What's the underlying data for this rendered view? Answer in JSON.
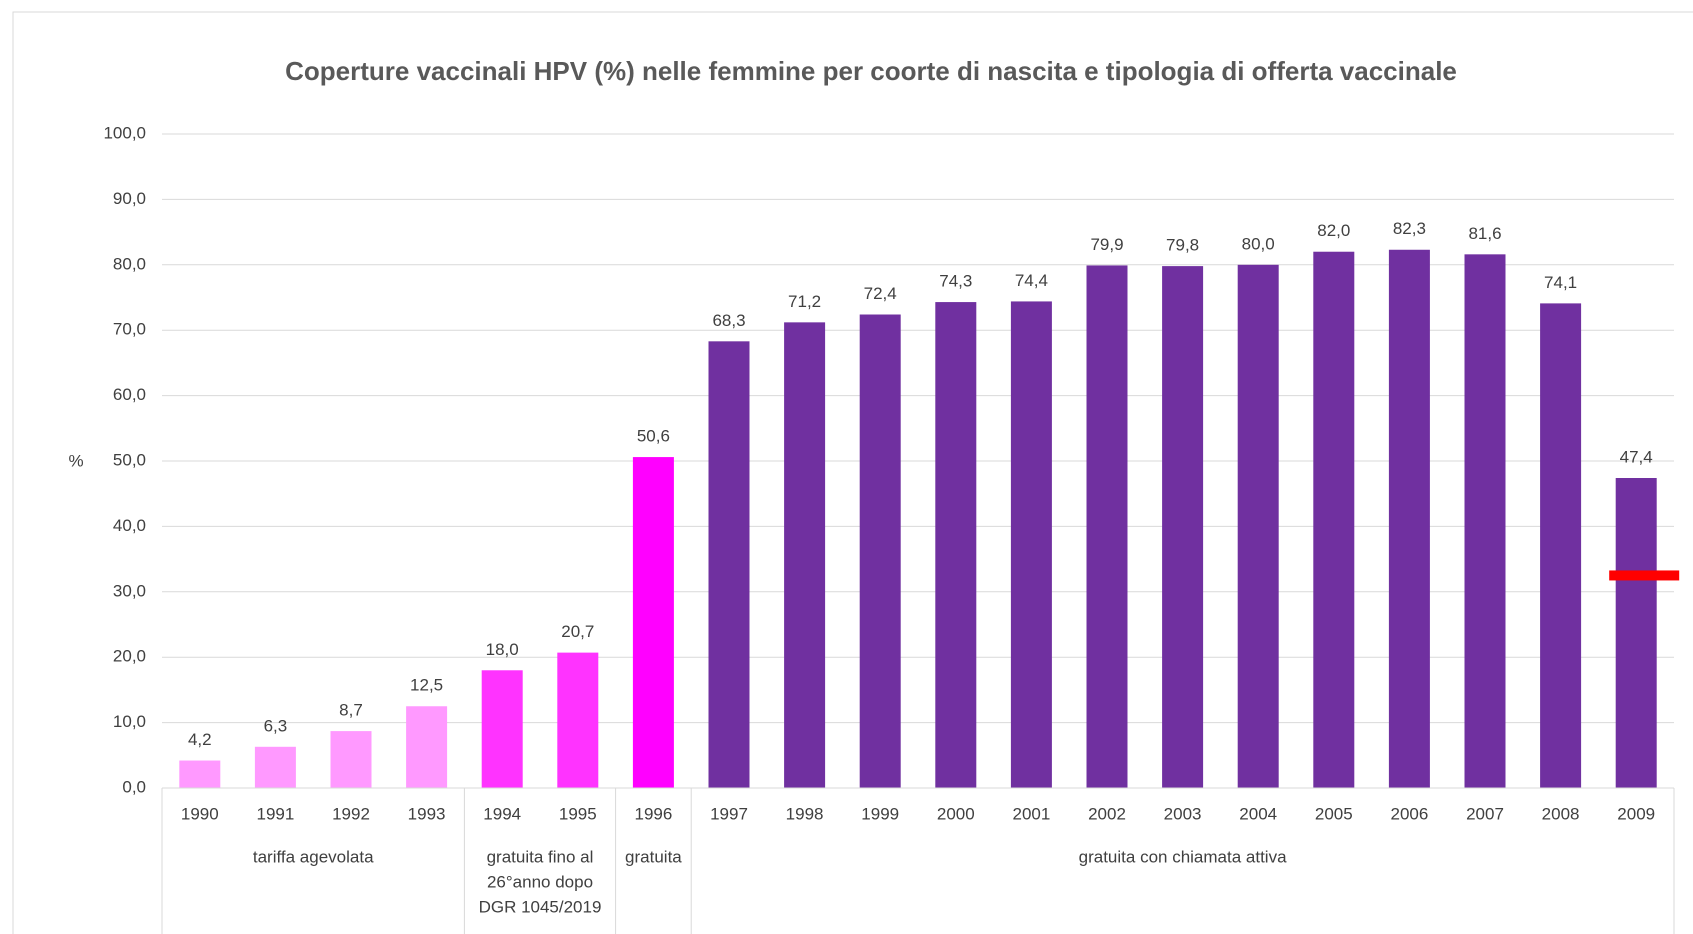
{
  "chart_data": {
    "type": "bar",
    "title": "Coperture vaccinali HPV (%) nelle femmine per coorte di nascita e tipologia di offerta vaccinale",
    "ylabel": "%",
    "categories": [
      "1990",
      "1991",
      "1992",
      "1993",
      "1994",
      "1995",
      "1996",
      "1997",
      "1998",
      "1999",
      "2000",
      "2001",
      "2002",
      "2003",
      "2004",
      "2005",
      "2006",
      "2007",
      "2008",
      "2009"
    ],
    "values": [
      4.2,
      6.3,
      8.7,
      12.5,
      18.0,
      20.7,
      50.6,
      68.3,
      71.2,
      72.4,
      74.3,
      74.4,
      79.9,
      79.8,
      80.0,
      82.0,
      82.3,
      81.6,
      74.1,
      47.4
    ],
    "value_labels": [
      "4,2",
      "6,3",
      "8,7",
      "12,5",
      "18,0",
      "20,7",
      "50,6",
      "68,3",
      "71,2",
      "72,4",
      "74,3",
      "74,4",
      "79,9",
      "79,8",
      "80,0",
      "82,0",
      "82,3",
      "81,6",
      "74,1",
      "47,4"
    ],
    "colors": [
      "#ff99ff",
      "#ff99ff",
      "#ff99ff",
      "#ff99ff",
      "#ff33ff",
      "#ff33ff",
      "#ff00ff",
      "#7030a0",
      "#7030a0",
      "#7030a0",
      "#7030a0",
      "#7030a0",
      "#7030a0",
      "#7030a0",
      "#7030a0",
      "#7030a0",
      "#7030a0",
      "#7030a0",
      "#7030a0",
      "#7030a0"
    ],
    "groups": [
      {
        "label": [
          "tariffa agevolata"
        ],
        "from": "1990",
        "to": "1993"
      },
      {
        "label": [
          "gratuita fino al",
          "26°anno dopo",
          "DGR 1045/2019"
        ],
        "from": "1994",
        "to": "1995"
      },
      {
        "label": [
          "gratuita"
        ],
        "from": "1996",
        "to": "1996"
      },
      {
        "label": [
          "gratuita con chiamata attiva"
        ],
        "from": "1997",
        "to": "2009"
      }
    ],
    "markers": [
      {
        "category": "2009",
        "value": 32.5,
        "color": "#ff0000"
      }
    ],
    "ylim": [
      0,
      100
    ],
    "yticks": [
      {
        "value": 0,
        "label": "0,0"
      },
      {
        "value": 10,
        "label": "10,0"
      },
      {
        "value": 20,
        "label": "20,0"
      },
      {
        "value": 30,
        "label": "30,0"
      },
      {
        "value": 40,
        "label": "40,0"
      },
      {
        "value": 50,
        "label": "50,0"
      },
      {
        "value": 60,
        "label": "60,0"
      },
      {
        "value": 70,
        "label": "70,0"
      },
      {
        "value": 80,
        "label": "80,0"
      },
      {
        "value": 90,
        "label": "90,0"
      },
      {
        "value": 100,
        "label": "100,0"
      }
    ],
    "grid": true
  }
}
